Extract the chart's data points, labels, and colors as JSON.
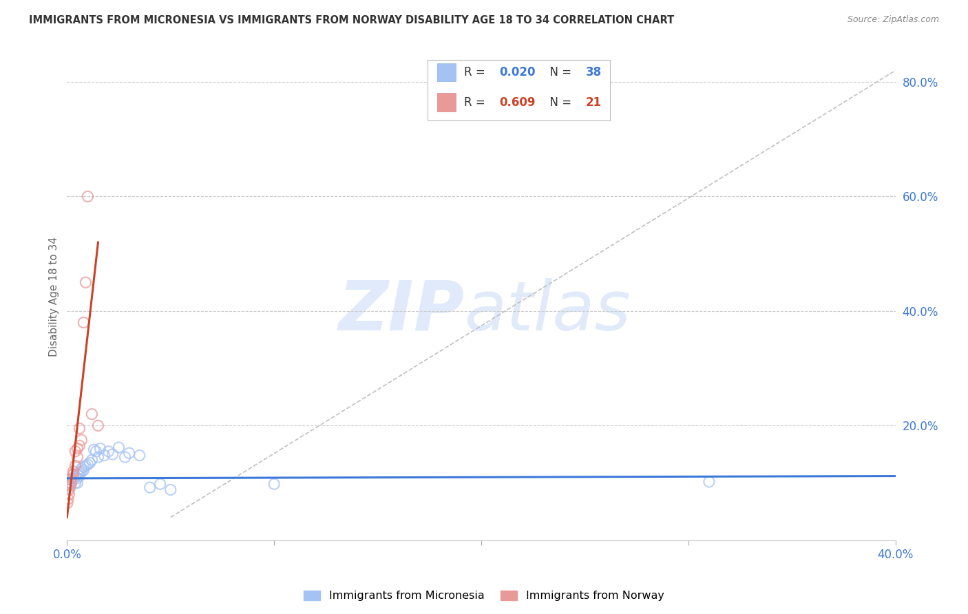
{
  "title": "IMMIGRANTS FROM MICRONESIA VS IMMIGRANTS FROM NORWAY DISABILITY AGE 18 TO 34 CORRELATION CHART",
  "source": "Source: ZipAtlas.com",
  "ylabel": "Disability Age 18 to 34",
  "xlabel": "",
  "xlim": [
    0.0,
    0.4
  ],
  "ylim": [
    0.0,
    0.85
  ],
  "xticks": [
    0.0,
    0.1,
    0.2,
    0.3,
    0.4
  ],
  "xticklabels": [
    "0.0%",
    "",
    "",
    "",
    "40.0%"
  ],
  "yticks": [
    0.2,
    0.4,
    0.6,
    0.8
  ],
  "yticklabels": [
    "20.0%",
    "40.0%",
    "60.0%",
    "80.0%"
  ],
  "blue_color": "#a4c2f4",
  "pink_color": "#ea9999",
  "blue_line_color": "#3c78d8",
  "pink_line_color": "#cc4125",
  "dashed_line_color": "#c0c0c0",
  "watermark_zip": "ZIP",
  "watermark_atlas": "atlas",
  "legend_R_blue": "0.020",
  "legend_N_blue": "38",
  "legend_R_pink": "0.609",
  "legend_N_pink": "21",
  "blue_scatter_x": [
    0.0005,
    0.001,
    0.0015,
    0.002,
    0.002,
    0.003,
    0.003,
    0.004,
    0.004,
    0.005,
    0.005,
    0.005,
    0.006,
    0.006,
    0.007,
    0.007,
    0.008,
    0.008,
    0.009,
    0.01,
    0.011,
    0.012,
    0.013,
    0.014,
    0.015,
    0.016,
    0.018,
    0.02,
    0.022,
    0.025,
    0.028,
    0.03,
    0.035,
    0.04,
    0.045,
    0.05,
    0.1,
    0.31
  ],
  "blue_scatter_y": [
    0.095,
    0.1,
    0.092,
    0.098,
    0.105,
    0.108,
    0.115,
    0.1,
    0.11,
    0.1,
    0.108,
    0.115,
    0.112,
    0.118,
    0.12,
    0.125,
    0.128,
    0.122,
    0.13,
    0.132,
    0.135,
    0.14,
    0.158,
    0.155,
    0.145,
    0.16,
    0.148,
    0.155,
    0.15,
    0.162,
    0.145,
    0.152,
    0.148,
    0.092,
    0.098,
    0.088,
    0.098,
    0.102
  ],
  "pink_scatter_x": [
    0.0002,
    0.0005,
    0.001,
    0.001,
    0.0015,
    0.002,
    0.002,
    0.003,
    0.003,
    0.004,
    0.004,
    0.005,
    0.005,
    0.006,
    0.006,
    0.007,
    0.008,
    0.009,
    0.01,
    0.012,
    0.015
  ],
  "pink_scatter_y": [
    0.065,
    0.072,
    0.08,
    0.088,
    0.095,
    0.1,
    0.108,
    0.115,
    0.12,
    0.13,
    0.155,
    0.145,
    0.16,
    0.165,
    0.195,
    0.175,
    0.38,
    0.45,
    0.6,
    0.22,
    0.2
  ],
  "blue_trend_x": [
    0.0,
    0.4
  ],
  "blue_trend_y": [
    0.108,
    0.112
  ],
  "pink_trend_x": [
    0.0,
    0.015
  ],
  "pink_trend_y": [
    0.04,
    0.52
  ],
  "dashed_line_x": [
    0.05,
    0.4
  ],
  "dashed_line_y": [
    0.04,
    0.82
  ]
}
